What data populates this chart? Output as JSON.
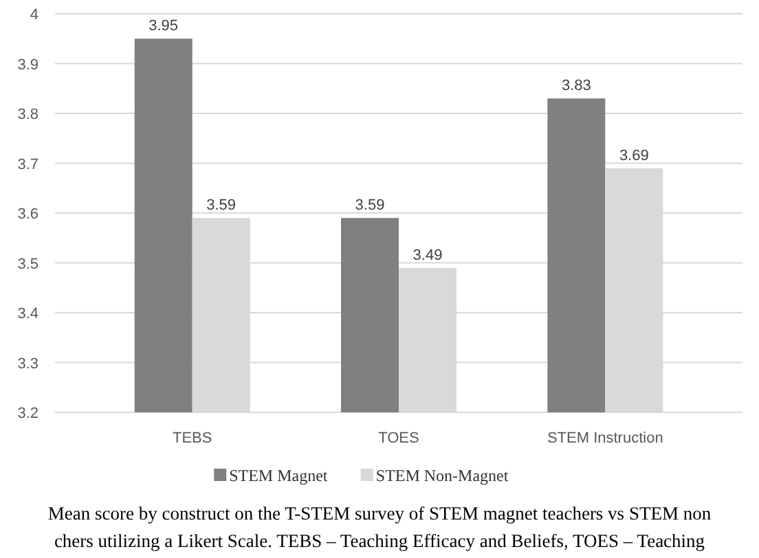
{
  "chart_data": {
    "type": "bar",
    "categories": [
      "TEBS",
      "TOES",
      "STEM Instruction"
    ],
    "series": [
      {
        "name": "STEM Magnet",
        "color": "#808080",
        "values": [
          3.95,
          3.59,
          3.83
        ]
      },
      {
        "name": "STEM Non-Magnet",
        "color": "#d9d9d9",
        "values": [
          3.59,
          3.49,
          3.69
        ]
      }
    ],
    "ylim": [
      3.2,
      4
    ],
    "yticks": [
      3.2,
      3.3,
      3.4,
      3.5,
      3.6,
      3.7,
      3.8,
      3.9,
      4
    ],
    "grid": "y",
    "legend": "bottom",
    "data_labels": true,
    "annotations": [
      "Mean score by construct on the T-STEM survey of STEM magnet teachers vs STEM non",
      "chers utilizing a Likert Scale.  TEBS – Teaching Efficacy and Beliefs, TOES – Teaching"
    ]
  }
}
